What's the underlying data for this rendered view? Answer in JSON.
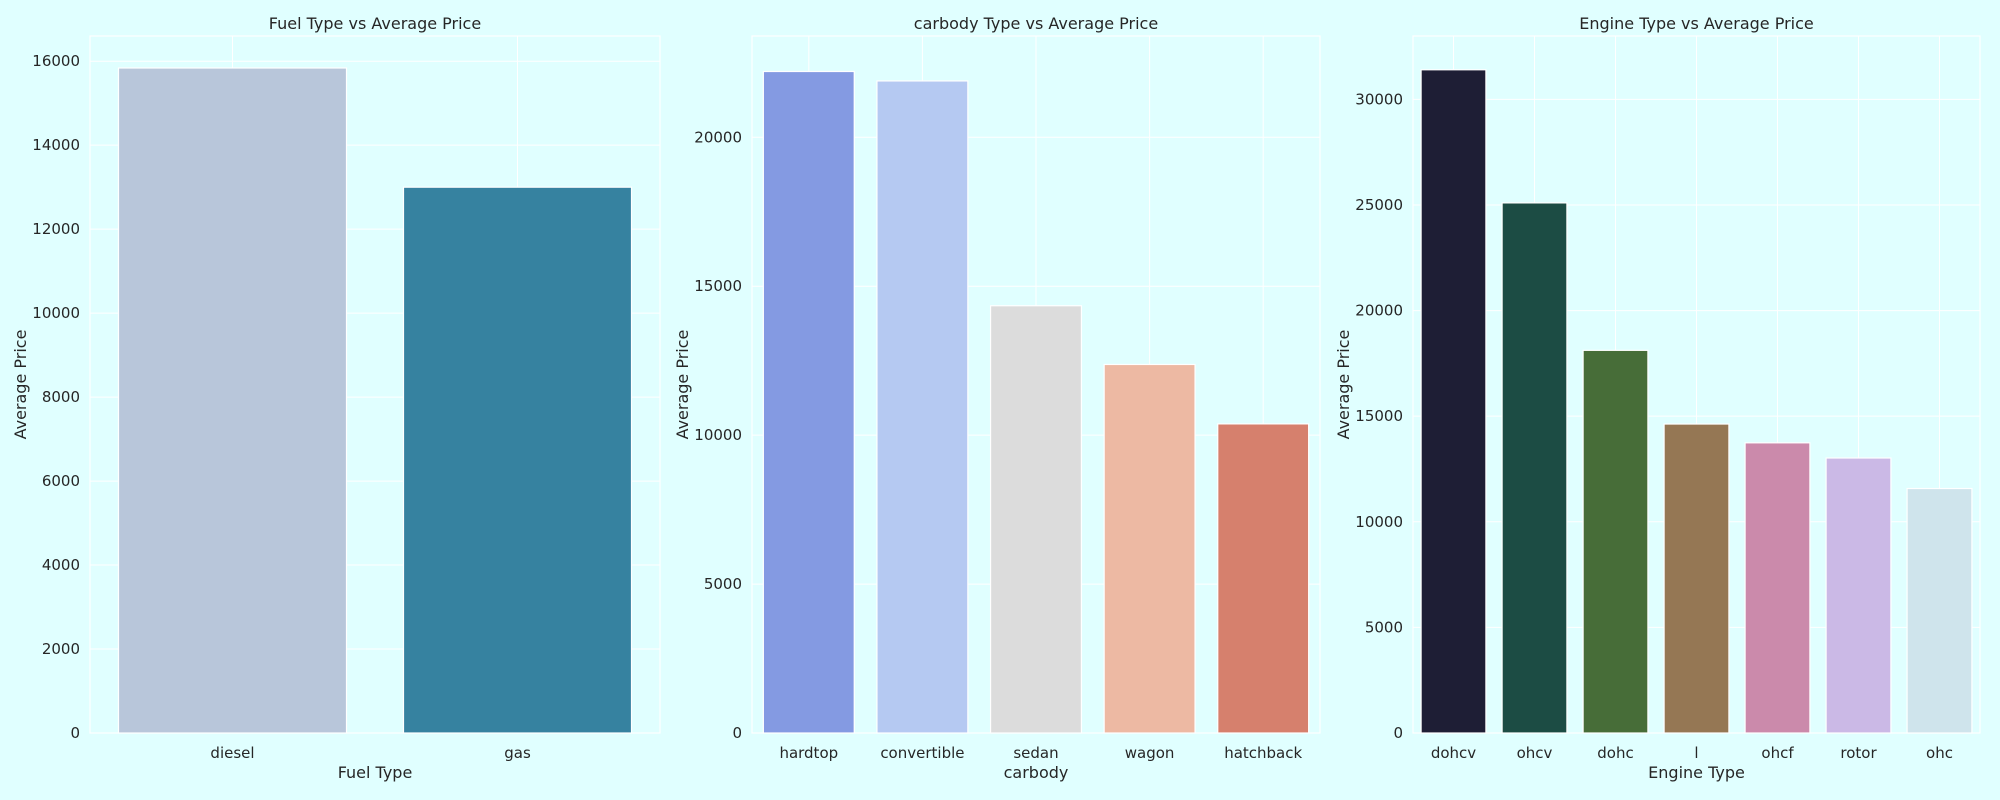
{
  "chart_data": [
    {
      "type": "bar",
      "title": "Fuel Type vs Average Price",
      "xlabel": "Fuel Type",
      "ylabel": "Average Price",
      "categories": [
        "diesel",
        "gas"
      ],
      "values": [
        15838,
        12999
      ],
      "colors": [
        "#b8c6da",
        "#3682a0"
      ],
      "ylim": [
        0,
        16600
      ],
      "yticks": [
        0,
        2000,
        4000,
        6000,
        8000,
        10000,
        12000,
        14000,
        16000
      ],
      "grid": true
    },
    {
      "type": "bar",
      "title": "carbody Type vs Average Price",
      "xlabel": "carbody",
      "ylabel": "Average Price",
      "categories": [
        "hardtop",
        "convertible",
        "sedan",
        "wagon",
        "hatchback"
      ],
      "values": [
        22208,
        21891,
        14344,
        12372,
        10377
      ],
      "colors": [
        "#849ae2",
        "#b5c9f2",
        "#dcdcdc",
        "#edb9a3",
        "#d6806d"
      ],
      "ylim": [
        0,
        23400
      ],
      "yticks": [
        0,
        5000,
        10000,
        15000,
        20000
      ],
      "grid": true
    },
    {
      "type": "bar",
      "title": "Engine Type vs Average Price",
      "xlabel": "Engine Type",
      "ylabel": "Average Price",
      "categories": [
        "dohcv",
        "ohcv",
        "dohc",
        "l",
        "ohcf",
        "rotor",
        "ohc"
      ],
      "values": [
        31400,
        25098,
        18117,
        14628,
        13738,
        13020,
        11575
      ],
      "colors": [
        "#1e1e35",
        "#1c4c44",
        "#476d38",
        "#957754",
        "#cb8aab",
        "#cbb9e6",
        "#cfe4ec"
      ],
      "ylim": [
        0,
        33000
      ],
      "yticks": [
        0,
        5000,
        10000,
        15000,
        20000,
        25000,
        30000
      ],
      "grid": true
    }
  ]
}
